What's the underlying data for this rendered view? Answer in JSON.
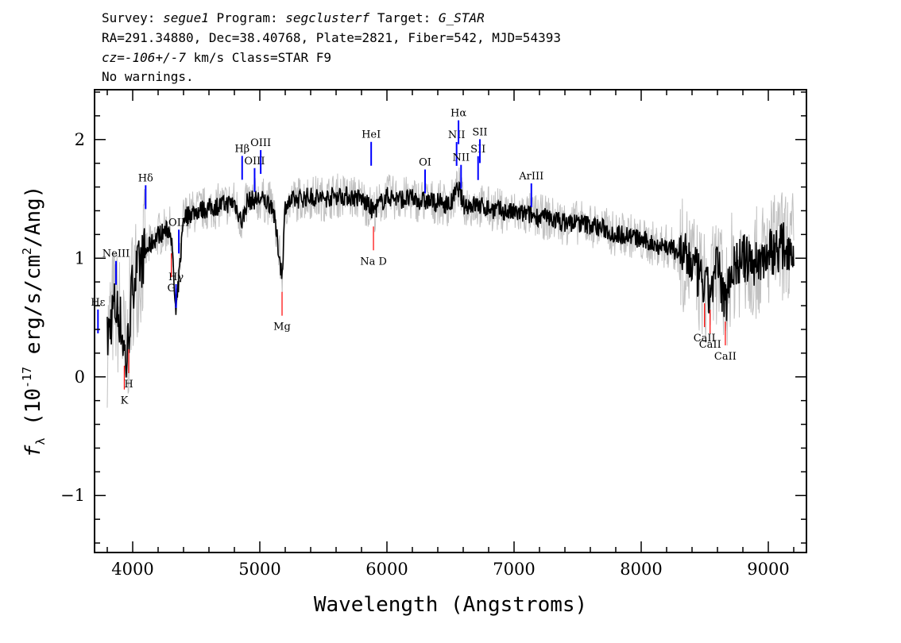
{
  "header": {
    "survey_label": "Survey:",
    "survey": "segue1",
    "program_label": "Program:",
    "program": "segclusterf",
    "target_label": "Target:",
    "target": "G_STAR",
    "line2": "RA=291.34880, Dec=38.40768, Plate=2821, Fiber=542, MJD=54393",
    "cz_label": "cz=",
    "cz_value": "-106+/-7",
    "cz_unit_class": "km/s Class=STAR F9",
    "warnings": "No warnings."
  },
  "chart_data": {
    "type": "line",
    "xlabel": "Wavelength (Angstroms)",
    "ylabel_symbol": "f",
    "ylabel_sub": "λ",
    "ylabel_rest": "(10",
    "ylabel_exp": "-17",
    "ylabel_units": "erg/s/cm",
    "ylabel_exp2": "2",
    "ylabel_end": "/Ang)",
    "xlim": [
      3700,
      9300
    ],
    "ylim": [
      -1.48,
      2.42
    ],
    "xticks": [
      4000,
      5000,
      6000,
      7000,
      8000,
      9000
    ],
    "xtick_labels": [
      "4000",
      "5000",
      "6000",
      "7000",
      "8000",
      "9000"
    ],
    "yticks": [
      -1,
      0,
      1,
      2
    ],
    "ytick_labels": [
      "−1",
      "0",
      "1",
      "2"
    ],
    "grid": false,
    "series": [
      {
        "role": "flux",
        "color": "#000000",
        "x": [
          3800,
          3850,
          3900,
          3950,
          4000,
          4100,
          4200,
          4300,
          4340,
          4400,
          4500,
          4600,
          4700,
          4800,
          4861,
          4900,
          5000,
          5100,
          5175,
          5200,
          5300,
          5400,
          5500,
          5600,
          5700,
          5800,
          5893,
          6000,
          6100,
          6200,
          6300,
          6400,
          6500,
          6563,
          6600,
          6700,
          6800,
          6900,
          7000,
          7100,
          7200,
          7300,
          7400,
          7500,
          7600,
          7700,
          7800,
          7900,
          8000,
          8100,
          8200,
          8300,
          8400,
          8500,
          8542,
          8600,
          8662,
          8700,
          8800,
          8900,
          9000,
          9100,
          9200
        ],
        "y": [
          0.3,
          0.6,
          0.5,
          0.1,
          0.8,
          1.05,
          1.2,
          1.25,
          0.5,
          1.35,
          1.4,
          1.42,
          1.45,
          1.47,
          1.3,
          1.48,
          1.5,
          1.45,
          0.85,
          1.45,
          1.5,
          1.52,
          1.5,
          1.53,
          1.52,
          1.5,
          1.4,
          1.52,
          1.5,
          1.5,
          1.48,
          1.47,
          1.45,
          1.6,
          1.45,
          1.45,
          1.42,
          1.4,
          1.38,
          1.37,
          1.35,
          1.33,
          1.3,
          1.3,
          1.28,
          1.25,
          1.2,
          1.2,
          1.15,
          1.12,
          1.1,
          1.05,
          0.95,
          0.75,
          0.7,
          0.95,
          0.6,
          0.9,
          1.0,
          0.95,
          1.05,
          1.1,
          1.1
        ]
      },
      {
        "role": "error/unsmoothed",
        "color": "#c0c0c0"
      }
    ],
    "emission_lines": [
      {
        "label": "Hε",
        "x": 3727,
        "color": "#0000ff"
      },
      {
        "label": "NeIII",
        "x": 3869,
        "color": "#0000ff"
      },
      {
        "label": "Hδ",
        "x": 4102,
        "color": "#0000ff"
      },
      {
        "label": "Hγ",
        "x": 4341,
        "color": "#0000ff"
      },
      {
        "label": "OIII",
        "x": 4363,
        "color": "#0000ff"
      },
      {
        "label": "Hβ",
        "x": 4861,
        "color": "#0000ff"
      },
      {
        "label": "OIII",
        "x": 4959,
        "color": "#0000ff"
      },
      {
        "label": "OIII",
        "x": 5007,
        "color": "#0000ff"
      },
      {
        "label": "HeI",
        "x": 5876,
        "color": "#0000ff"
      },
      {
        "label": "OI",
        "x": 6300,
        "color": "#0000ff"
      },
      {
        "label": "NII",
        "x": 6548,
        "color": "#0000ff"
      },
      {
        "label": "Hα",
        "x": 6563,
        "color": "#0000ff"
      },
      {
        "label": "NII",
        "x": 6583,
        "color": "#0000ff"
      },
      {
        "label": "SII",
        "x": 6717,
        "color": "#0000ff"
      },
      {
        "label": "SII",
        "x": 6731,
        "color": "#0000ff"
      },
      {
        "label": "ArIII",
        "x": 7136,
        "color": "#0000ff"
      }
    ],
    "absorption_lines": [
      {
        "label": "K",
        "x": 3934,
        "color": "#ff0000"
      },
      {
        "label": "H",
        "x": 3969,
        "color": "#ff0000"
      },
      {
        "label": "G",
        "x": 4304,
        "color": "#ff0000"
      },
      {
        "label": "Mg",
        "x": 5175,
        "color": "#ff0000"
      },
      {
        "label": "Na D",
        "x": 5894,
        "color": "#ff0000"
      },
      {
        "label": "CaII",
        "x": 8498,
        "color": "#ff0000"
      },
      {
        "label": "CaII",
        "x": 8542,
        "color": "#ff0000"
      },
      {
        "label": "CaII",
        "x": 8662,
        "color": "#ff0000"
      }
    ]
  }
}
